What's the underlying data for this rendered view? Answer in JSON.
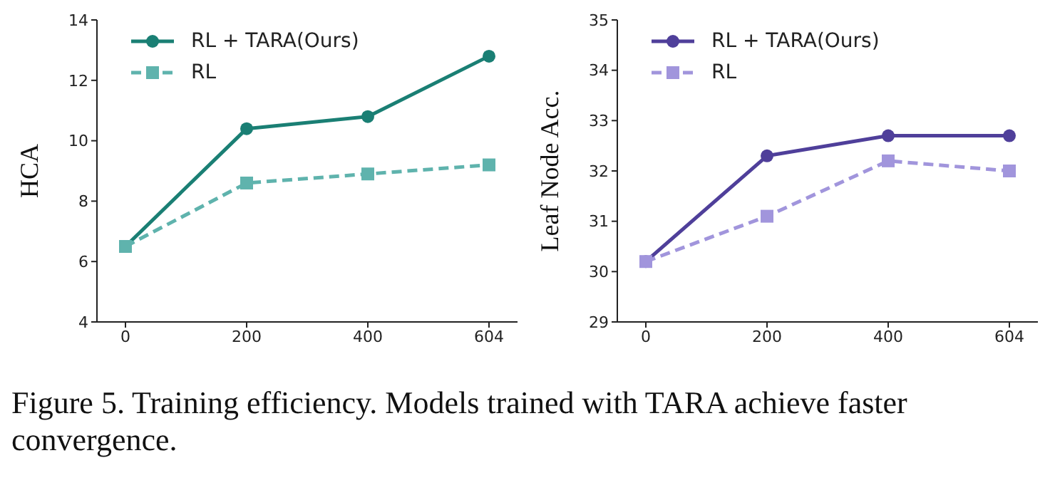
{
  "chart_data": [
    {
      "type": "line",
      "categories": [
        "0",
        "200",
        "400",
        "604"
      ],
      "ylabel": "HCA",
      "ylim": [
        4,
        14
      ],
      "yticks": [
        4,
        6,
        8,
        10,
        12,
        14
      ],
      "legend": "top left",
      "grid": false,
      "series": [
        {
          "name": "RL + TARA(Ours)",
          "color": "#1a7f74",
          "values": [
            6.5,
            10.4,
            10.8,
            12.8
          ],
          "marker": "circle",
          "line_style": "solid"
        },
        {
          "name": "RL",
          "color": "#5fb3ad",
          "values": [
            6.5,
            8.6,
            8.9,
            9.2
          ],
          "marker": "square",
          "line_style": "dashed"
        }
      ],
      "annotations": [
        "Figure 5. Training efficiency. Models trained with TARA achieve faster convergence."
      ]
    },
    {
      "type": "line",
      "categories": [
        "0",
        "200",
        "400",
        "604"
      ],
      "ylabel": "Leaf Node Acc.",
      "ylim": [
        29,
        35
      ],
      "yticks": [
        29,
        30,
        31,
        32,
        33,
        34,
        35
      ],
      "legend": "top left",
      "grid": false,
      "series": [
        {
          "name": "RL + TARA(Ours)",
          "color": "#4f3f9a",
          "values": [
            30.2,
            32.3,
            32.7,
            32.7
          ],
          "marker": "circle",
          "line_style": "solid"
        },
        {
          "name": "RL",
          "color": "#a195dc",
          "values": [
            30.2,
            31.1,
            32.2,
            32.0
          ],
          "marker": "square",
          "line_style": "dashed"
        }
      ]
    }
  ]
}
